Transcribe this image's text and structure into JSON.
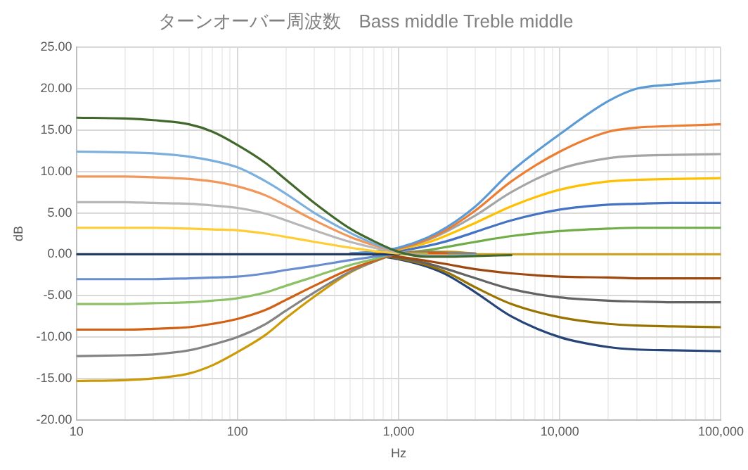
{
  "chart_data": {
    "type": "line",
    "title": "ターンオーバー周波数　Bass middle Treble middle",
    "xlabel": "Hz",
    "ylabel": "dB",
    "log": "x",
    "grid": true,
    "legend": false,
    "marker": "none",
    "line_style": "solid",
    "x": [
      10,
      20,
      30,
      50,
      70,
      100,
      150,
      200,
      300,
      500,
      700,
      1000,
      1500,
      2000,
      3000,
      5000,
      10000,
      20000,
      30000,
      50000,
      100000
    ],
    "xlim": [
      10,
      100000
    ],
    "xticks": [
      10,
      {
        "value": 20,
        "label": null
      },
      {
        "value": 30,
        "label": null
      },
      {
        "value": 40,
        "label": null
      },
      {
        "value": 50,
        "label": null
      },
      {
        "value": 60,
        "label": null
      },
      {
        "value": 70,
        "label": null
      },
      {
        "value": 80,
        "label": null
      },
      {
        "value": 90,
        "label": null
      },
      100,
      {
        "value": 200,
        "label": null
      },
      {
        "value": 300,
        "label": null
      },
      {
        "value": 400,
        "label": null
      },
      {
        "value": 500,
        "label": null
      },
      {
        "value": 600,
        "label": null
      },
      {
        "value": 700,
        "label": null
      },
      {
        "value": 800,
        "label": null
      },
      {
        "value": 900,
        "label": null
      },
      {
        "value": 1000,
        "label": "1,000"
      },
      {
        "value": 2000,
        "label": null
      },
      {
        "value": 3000,
        "label": null
      },
      {
        "value": 4000,
        "label": null
      },
      {
        "value": 5000,
        "label": null
      },
      {
        "value": 6000,
        "label": null
      },
      {
        "value": 7000,
        "label": null
      },
      {
        "value": 8000,
        "label": null
      },
      {
        "value": 9000,
        "label": null
      },
      {
        "value": 10000,
        "label": "10,000"
      },
      {
        "value": 20000,
        "label": null
      },
      {
        "value": 30000,
        "label": null
      },
      {
        "value": 40000,
        "label": null
      },
      {
        "value": 50000,
        "label": null
      },
      {
        "value": 60000,
        "label": null
      },
      {
        "value": 70000,
        "label": null
      },
      {
        "value": 80000,
        "label": null
      },
      {
        "value": 90000,
        "label": null
      },
      {
        "value": 100000,
        "label": "100,000"
      }
    ],
    "ylim": [
      -20,
      25
    ],
    "yticks": [
      {
        "value": -20,
        "label": "-20.00"
      },
      {
        "value": -15,
        "label": "-15.00"
      },
      {
        "value": -10,
        "label": "-10.00"
      },
      {
        "value": -5,
        "label": "-5.00"
      },
      {
        "value": 0,
        "label": "0.00"
      },
      {
        "value": 5,
        "label": "5.00"
      },
      {
        "value": 10,
        "label": "10.00"
      },
      {
        "value": 15,
        "label": "15.00"
      },
      {
        "value": 20,
        "label": "20.00"
      },
      {
        "value": 25,
        "label": "25.00"
      }
    ],
    "series": [
      {
        "color": "#43682b",
        "values": [
          16.5,
          16.4,
          16.2,
          15.7,
          14.8,
          13.2,
          11.0,
          9.0,
          6.2,
          3.1,
          1.6,
          0.3,
          -0.3,
          -0.3,
          -0.2,
          -0.1,
          null,
          null,
          null,
          null,
          null
        ]
      },
      {
        "color": "#7cafdd",
        "values": [
          12.4,
          12.3,
          12.2,
          11.8,
          11.3,
          10.5,
          8.8,
          7.3,
          5.0,
          2.6,
          1.3,
          0.3,
          -0.2,
          -0.2,
          -0.1,
          null,
          null,
          null,
          null,
          null,
          null
        ]
      },
      {
        "color": "#f1975a",
        "values": [
          9.4,
          9.4,
          9.3,
          9.1,
          8.8,
          8.2,
          7.1,
          5.9,
          4.1,
          2.1,
          1.1,
          0.3,
          -0.1,
          -0.1,
          null,
          null,
          null,
          null,
          null,
          null,
          null
        ]
      },
      {
        "color": "#b7b7b7",
        "values": [
          6.3,
          6.3,
          6.2,
          6.1,
          5.9,
          5.6,
          4.9,
          4.1,
          2.9,
          1.5,
          0.8,
          0.2,
          null,
          null,
          null,
          null,
          null,
          null,
          null,
          null,
          null
        ]
      },
      {
        "color": "#ffcd33",
        "values": [
          3.2,
          3.2,
          3.2,
          3.1,
          3.0,
          2.9,
          2.5,
          2.1,
          1.5,
          0.8,
          0.4,
          0.1,
          null,
          null,
          null,
          null,
          null,
          null,
          null,
          null,
          null
        ]
      },
      {
        "color": "#1f3864",
        "values": [
          0,
          0,
          0,
          0,
          0,
          0,
          0,
          0,
          0,
          0,
          0,
          0,
          null,
          null,
          null,
          null,
          null,
          null,
          null,
          null,
          null
        ]
      },
      {
        "color": "#698ed0",
        "values": [
          -3,
          -3,
          -3,
          -2.9,
          -2.8,
          -2.7,
          -2.3,
          -1.9,
          -1.4,
          -0.7,
          -0.3,
          0.1,
          null,
          null,
          null,
          null,
          null,
          null,
          null,
          null,
          null
        ]
      },
      {
        "color": "#8cc168",
        "values": [
          -6,
          -6,
          -5.9,
          -5.8,
          -5.6,
          -5.3,
          -4.6,
          -3.8,
          -2.7,
          -1.3,
          -0.6,
          0.1,
          0.1,
          null,
          null,
          null,
          null,
          null,
          null,
          null,
          null
        ]
      },
      {
        "color": "#d26012",
        "values": [
          -9.1,
          -9.1,
          -9.0,
          -8.8,
          -8.4,
          -7.8,
          -6.7,
          -5.5,
          -3.8,
          -1.8,
          -0.8,
          0.1,
          0.2,
          0.1,
          null,
          null,
          null,
          null,
          null,
          null,
          null
        ]
      },
      {
        "color": "#848484",
        "values": [
          -12.3,
          -12.2,
          -12.1,
          -11.6,
          -10.9,
          -10.0,
          -8.4,
          -6.8,
          -4.6,
          -2.1,
          -0.9,
          0.1,
          0.3,
          0.2,
          0.1,
          null,
          null,
          null,
          null,
          null,
          null
        ]
      },
      {
        "color": "#cc9a06",
        "values": [
          -15.3,
          -15.2,
          -15.0,
          -14.4,
          -13.4,
          -11.8,
          -9.7,
          -7.7,
          -5.1,
          -2.2,
          -0.9,
          0.1,
          0.3,
          0.3,
          0.1,
          null,
          null,
          null,
          null,
          null,
          null
        ]
      },
      {
        "color": "#5b9bd5",
        "values": [
          null,
          null,
          null,
          null,
          null,
          null,
          null,
          null,
          null,
          0.1,
          0.3,
          0.8,
          2.0,
          3.3,
          5.8,
          10.0,
          14.5,
          18.5,
          20.0,
          20.5,
          21.0
        ]
      },
      {
        "color": "#ed7d31",
        "values": [
          null,
          null,
          null,
          null,
          null,
          null,
          null,
          null,
          null,
          0.1,
          0.3,
          0.7,
          1.8,
          3.0,
          5.3,
          8.8,
          12.4,
          14.8,
          15.3,
          15.5,
          15.7
        ]
      },
      {
        "color": "#a5a5a5",
        "values": [
          null,
          null,
          null,
          null,
          null,
          null,
          null,
          null,
          null,
          0.1,
          0.3,
          0.7,
          1.7,
          2.8,
          4.7,
          7.5,
          10.3,
          11.6,
          11.9,
          12.0,
          12.1
        ]
      },
      {
        "color": "#ffc000",
        "values": [
          null,
          null,
          null,
          null,
          null,
          null,
          null,
          null,
          null,
          0.1,
          0.2,
          0.6,
          1.4,
          2.3,
          3.8,
          5.8,
          7.8,
          8.8,
          9.0,
          9.1,
          9.2
        ]
      },
      {
        "color": "#4472c4",
        "values": [
          null,
          null,
          null,
          null,
          null,
          null,
          null,
          null,
          null,
          null,
          0.1,
          0.4,
          1.0,
          1.6,
          2.7,
          4.1,
          5.4,
          6.0,
          6.1,
          6.2,
          6.2
        ]
      },
      {
        "color": "#70ad47",
        "values": [
          null,
          null,
          null,
          null,
          null,
          null,
          null,
          null,
          null,
          null,
          0.1,
          0.2,
          0.5,
          0.9,
          1.5,
          2.2,
          2.8,
          3.1,
          3.2,
          3.2,
          3.2
        ]
      },
      {
        "color": "#c9a227",
        "values": [
          null,
          null,
          null,
          null,
          null,
          null,
          null,
          null,
          null,
          null,
          null,
          0,
          0,
          0,
          0,
          0,
          0,
          0,
          0,
          0,
          0
        ]
      },
      {
        "color": "#9e480e",
        "values": [
          null,
          null,
          null,
          null,
          null,
          null,
          null,
          null,
          null,
          null,
          -0.1,
          -0.3,
          -0.8,
          -1.2,
          -1.8,
          -2.3,
          -2.7,
          -2.8,
          -2.9,
          -2.9,
          -2.9
        ]
      },
      {
        "color": "#636363",
        "values": [
          null,
          null,
          null,
          null,
          null,
          null,
          null,
          null,
          null,
          null,
          -0.1,
          -0.4,
          -1.1,
          -1.8,
          -2.9,
          -4.2,
          -5.2,
          -5.6,
          -5.7,
          -5.8,
          -5.8
        ]
      },
      {
        "color": "#997300",
        "values": [
          null,
          null,
          null,
          null,
          null,
          null,
          null,
          null,
          null,
          null,
          -0.1,
          -0.5,
          -1.3,
          -2.2,
          -4.0,
          -6.0,
          -7.6,
          -8.4,
          -8.6,
          -8.7,
          -8.8
        ]
      },
      {
        "color": "#264478",
        "values": [
          null,
          null,
          null,
          null,
          null,
          null,
          null,
          null,
          null,
          null,
          -0.1,
          -0.6,
          -1.5,
          -2.5,
          -4.6,
          -7.5,
          -10.0,
          -11.2,
          -11.5,
          -11.6,
          -11.7
        ]
      }
    ]
  }
}
